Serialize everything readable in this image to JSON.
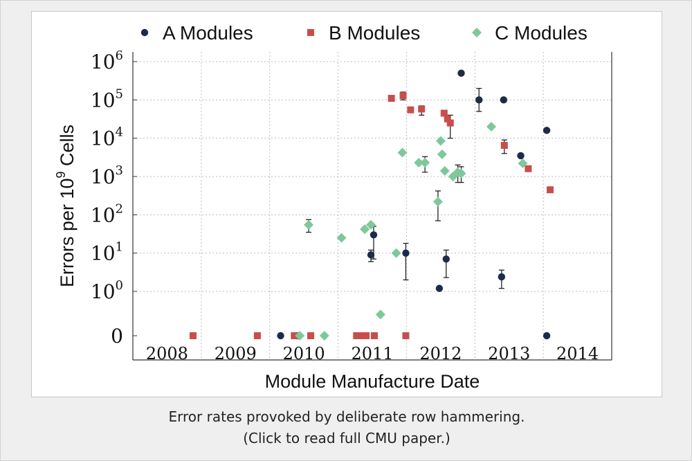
{
  "caption": {
    "line1": "Error rates provoked by deliberate row hammering.",
    "line2": "(Click to read full CMU paper.)"
  },
  "chart_data": {
    "type": "scatter",
    "xlabel": "Module Manufacture Date",
    "ylabel_prefix": "Errors per 10",
    "ylabel_sup": "9",
    "ylabel_suffix": " Cells",
    "x_ticks": [
      "2008",
      "2009",
      "2010",
      "2011",
      "2012",
      "2013",
      "2014"
    ],
    "xlim": [
      2007.5,
      2014.5
    ],
    "y_scale": "log with zero row",
    "ylim_log10": [
      0,
      6
    ],
    "y_ticks": [
      {
        "base": "0",
        "sup": ""
      },
      {
        "base": "10",
        "sup": "0"
      },
      {
        "base": "10",
        "sup": "1"
      },
      {
        "base": "10",
        "sup": "2"
      },
      {
        "base": "10",
        "sup": "3"
      },
      {
        "base": "10",
        "sup": "4"
      },
      {
        "base": "10",
        "sup": "5"
      },
      {
        "base": "10",
        "sup": "6"
      }
    ],
    "legend_position": "top",
    "grid": true,
    "series": [
      {
        "name": "A Modules",
        "marker": "circle",
        "color": "#1d2a4a",
        "points": [
          {
            "x": 2009.66,
            "y": 0
          },
          {
            "x": 2009.9,
            "y": 0
          },
          {
            "x": 2009.93,
            "y": 0
          },
          {
            "x": 2010.98,
            "y": 9,
            "err": [
              6,
              12
            ]
          },
          {
            "x": 2011.02,
            "y": 30,
            "err": [
              7,
              50
            ]
          },
          {
            "x": 2011.49,
            "y": 10,
            "err": [
              2,
              18
            ]
          },
          {
            "x": 2011.98,
            "y": 1.2
          },
          {
            "x": 2012.08,
            "y": 7,
            "err": [
              2.3,
              12
            ]
          },
          {
            "x": 2012.3,
            "y": 500000
          },
          {
            "x": 2012.56,
            "y": 100000,
            "err": [
              50000,
              200000
            ]
          },
          {
            "x": 2012.89,
            "y": 2.4,
            "err": [
              1.2,
              3.6
            ]
          },
          {
            "x": 2012.92,
            "y": 100000
          },
          {
            "x": 2013.17,
            "y": 3500
          },
          {
            "x": 2013.55,
            "y": 16000
          },
          {
            "x": 2013.55,
            "y": 0
          }
        ]
      },
      {
        "name": "B Modules",
        "marker": "square",
        "color": "#c94d4d",
        "points": [
          {
            "x": 2008.38,
            "y": 0
          },
          {
            "x": 2009.32,
            "y": 0
          },
          {
            "x": 2009.86,
            "y": 0
          },
          {
            "x": 2010.1,
            "y": 0
          },
          {
            "x": 2010.77,
            "y": 0
          },
          {
            "x": 2010.85,
            "y": 0
          },
          {
            "x": 2010.91,
            "y": 0
          },
          {
            "x": 2011.03,
            "y": 0
          },
          {
            "x": 2011.28,
            "y": 110000
          },
          {
            "x": 2011.45,
            "y": 130000,
            "err": [
              100000,
              160000
            ]
          },
          {
            "x": 2011.49,
            "y": 0
          },
          {
            "x": 2011.56,
            "y": 55000
          },
          {
            "x": 2011.72,
            "y": 58000,
            "err": [
              40000,
              70000
            ]
          },
          {
            "x": 2012.05,
            "y": 45000
          },
          {
            "x": 2012.1,
            "y": 32000
          },
          {
            "x": 2012.14,
            "y": 25000,
            "err": [
              10000,
              40000
            ]
          },
          {
            "x": 2012.93,
            "y": 6500,
            "err": [
              4000,
              9000
            ]
          },
          {
            "x": 2013.28,
            "y": 1600
          },
          {
            "x": 2013.6,
            "y": 450
          }
        ]
      },
      {
        "name": "C Modules",
        "marker": "diamond",
        "color": "#7ec89a",
        "points": [
          {
            "x": 2009.94,
            "y": 0
          },
          {
            "x": 2010.07,
            "y": 55,
            "err": [
              35,
              75
            ]
          },
          {
            "x": 2010.3,
            "y": 0
          },
          {
            "x": 2010.55,
            "y": 25
          },
          {
            "x": 2010.89,
            "y": 42
          },
          {
            "x": 2010.98,
            "y": 55
          },
          {
            "x": 2011.12,
            "y": 0.25
          },
          {
            "x": 2011.35,
            "y": 10
          },
          {
            "x": 2011.44,
            "y": 4200
          },
          {
            "x": 2011.68,
            "y": 2300
          },
          {
            "x": 2011.77,
            "y": 2300,
            "err": [
              1300,
              3300
            ]
          },
          {
            "x": 2011.96,
            "y": 220,
            "err": [
              70,
              420
            ]
          },
          {
            "x": 2012.0,
            "y": 8500
          },
          {
            "x": 2012.02,
            "y": 3800
          },
          {
            "x": 2012.06,
            "y": 1400
          },
          {
            "x": 2012.18,
            "y": 1000
          },
          {
            "x": 2012.25,
            "y": 1300,
            "err": [
              700,
              2000
            ]
          },
          {
            "x": 2012.3,
            "y": 1200,
            "err": [
              700,
              1800
            ]
          },
          {
            "x": 2012.74,
            "y": 20000
          },
          {
            "x": 2013.2,
            "y": 2200
          }
        ]
      }
    ]
  }
}
